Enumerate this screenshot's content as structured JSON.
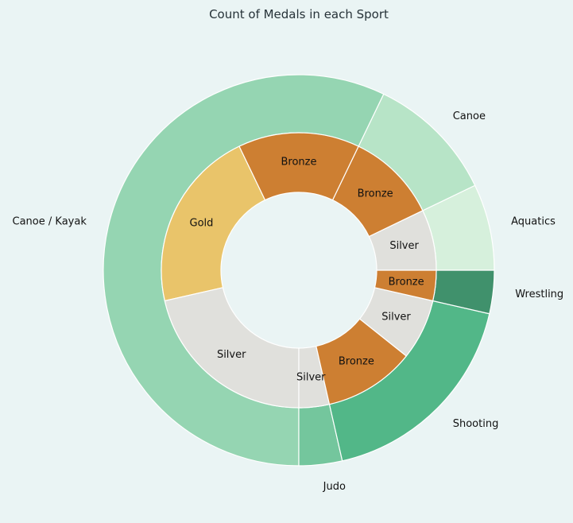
{
  "chart_data": {
    "type": "pie",
    "subtype": "nested-donut",
    "title": "Count of Medals in each Sport",
    "outer_ring": [
      {
        "label": "Aquatics",
        "value": 2,
        "color": "#d6f0dc"
      },
      {
        "label": "Canoe",
        "value": 3,
        "color": "#b7e4c7"
      },
      {
        "label": "Canoe / Kayak",
        "value": 16,
        "color": "#95d5b2"
      },
      {
        "label": "Judo",
        "value": 1,
        "color": "#74c69d"
      },
      {
        "label": "Shooting",
        "value": 5,
        "color": "#52b788"
      },
      {
        "label": "Wrestling",
        "value": 1,
        "color": "#40916c"
      }
    ],
    "inner_ring": [
      {
        "sport": "Aquatics",
        "label": "Silver",
        "value": 2,
        "color": "#e0e0dc"
      },
      {
        "sport": "Canoe",
        "label": "Bronze",
        "value": 3,
        "color": "#cd7f32"
      },
      {
        "sport": "Canoe / Kayak",
        "label": "Bronze",
        "value": 4,
        "color": "#cd7f32"
      },
      {
        "sport": "Canoe / Kayak",
        "label": "Gold",
        "value": 6,
        "color": "#e9c46a"
      },
      {
        "sport": "Canoe / Kayak",
        "label": "Silver",
        "value": 6,
        "color": "#e0e0dc"
      },
      {
        "sport": "Judo",
        "label": "Silver",
        "value": 1,
        "color": "#e0e0dc"
      },
      {
        "sport": "Shooting",
        "label": "Bronze",
        "value": 3,
        "color": "#cd7f32"
      },
      {
        "sport": "Shooting",
        "label": "Silver",
        "value": 2,
        "color": "#e0e0dc"
      },
      {
        "sport": "Wrestling",
        "label": "Bronze",
        "value": 1,
        "color": "#cd7f32"
      }
    ],
    "start_angle_deg": 0,
    "direction": "counterclockwise"
  }
}
